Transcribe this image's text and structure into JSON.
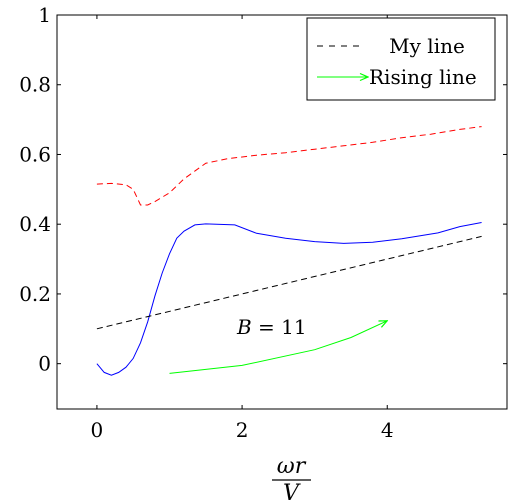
{
  "chart_data": {
    "type": "line",
    "title": "",
    "xlabel_num": "ωr",
    "xlabel_den": "V",
    "ylabel": "",
    "xlim": [
      -0.55,
      5.65
    ],
    "ylim": [
      -0.13,
      1.0
    ],
    "xticks": [
      0,
      2,
      4
    ],
    "xtick_labels": [
      "0",
      "2",
      "4"
    ],
    "yticks": [
      0,
      0.2,
      0.4,
      0.6,
      0.8,
      1
    ],
    "ytick_labels": [
      "0",
      "0.2",
      "0.4",
      "0.6",
      "0.8",
      "1"
    ],
    "grid": false,
    "legend_position": "top-right",
    "annotation": {
      "text_var": "B",
      "text_rest": " = 11",
      "x": 1.93,
      "y": 0.105
    },
    "series": [
      {
        "name": "",
        "color": "#ff0000",
        "style": "dashed",
        "x": [
          0,
          0.2,
          0.4,
          0.5,
          0.6,
          0.7,
          0.8,
          1.0,
          1.2,
          1.5,
          1.8,
          2.2,
          2.6,
          3.0,
          3.4,
          3.8,
          4.2,
          4.6,
          5.0,
          5.3
        ],
        "y": [
          0.515,
          0.517,
          0.513,
          0.5,
          0.455,
          0.455,
          0.465,
          0.49,
          0.53,
          0.575,
          0.588,
          0.598,
          0.605,
          0.615,
          0.625,
          0.635,
          0.648,
          0.658,
          0.672,
          0.68
        ]
      },
      {
        "name": "",
        "color": "#0000ff",
        "style": "solid",
        "x": [
          0,
          0.1,
          0.2,
          0.3,
          0.4,
          0.5,
          0.6,
          0.7,
          0.8,
          0.9,
          1.0,
          1.1,
          1.2,
          1.35,
          1.5,
          1.9,
          2.2,
          2.6,
          3.0,
          3.4,
          3.8,
          4.2,
          4.7,
          5.0,
          5.3
        ],
        "y": [
          0.0,
          -0.025,
          -0.033,
          -0.025,
          -0.01,
          0.015,
          0.06,
          0.12,
          0.195,
          0.26,
          0.315,
          0.36,
          0.38,
          0.398,
          0.401,
          0.398,
          0.374,
          0.36,
          0.35,
          0.345,
          0.348,
          0.358,
          0.375,
          0.393,
          0.405
        ]
      },
      {
        "name": "My line",
        "color": "#000000",
        "style": "dashed",
        "x": [
          0,
          5.3
        ],
        "y": [
          0.1,
          0.365
        ]
      },
      {
        "name": "Rising line",
        "color": "#00ff00",
        "style": "arrow",
        "x": [
          1.0,
          2.0,
          3.0,
          3.5,
          4.0
        ],
        "y": [
          -0.028,
          -0.005,
          0.04,
          0.075,
          0.123
        ]
      }
    ]
  }
}
